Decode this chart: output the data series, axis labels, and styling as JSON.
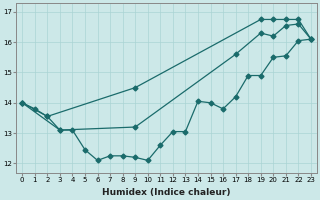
{
  "xlabel": "Humidex (Indice chaleur)",
  "background_color": "#cce8e8",
  "line_color": "#1a6b6b",
  "grid_color": "#aad4d4",
  "x_min": -0.5,
  "x_max": 23.5,
  "y_min": 11.7,
  "y_max": 17.3,
  "yticks": [
    12,
    13,
    14,
    15,
    16,
    17
  ],
  "xticks": [
    0,
    1,
    2,
    3,
    4,
    5,
    6,
    7,
    8,
    9,
    10,
    11,
    12,
    13,
    14,
    15,
    16,
    17,
    18,
    19,
    20,
    21,
    22,
    23
  ],
  "line1_x": [
    0,
    1,
    2,
    3,
    4,
    5,
    6,
    7,
    8,
    9,
    10,
    11,
    12,
    13,
    14,
    15,
    16,
    17,
    18,
    19,
    20,
    21,
    22,
    23
  ],
  "line1_y": [
    14.0,
    13.8,
    13.55,
    13.1,
    13.1,
    12.45,
    12.1,
    12.25,
    12.25,
    12.2,
    12.1,
    12.6,
    13.05,
    13.05,
    14.05,
    14.0,
    13.8,
    14.2,
    14.9,
    14.9,
    15.5,
    15.55,
    16.05,
    16.1
  ],
  "line2_x": [
    0,
    2,
    9,
    19,
    20,
    21,
    22,
    23
  ],
  "line2_y": [
    14.0,
    13.55,
    14.5,
    16.75,
    16.75,
    16.75,
    16.75,
    16.1
  ],
  "line3_x": [
    0,
    3,
    9,
    17,
    19,
    20,
    21,
    22,
    23
  ],
  "line3_y": [
    14.0,
    13.1,
    13.2,
    15.6,
    16.3,
    16.2,
    16.55,
    16.6,
    16.1
  ],
  "marker_size": 2.5,
  "linewidth": 0.9,
  "tick_fontsize": 5,
  "xlabel_fontsize": 6.5
}
